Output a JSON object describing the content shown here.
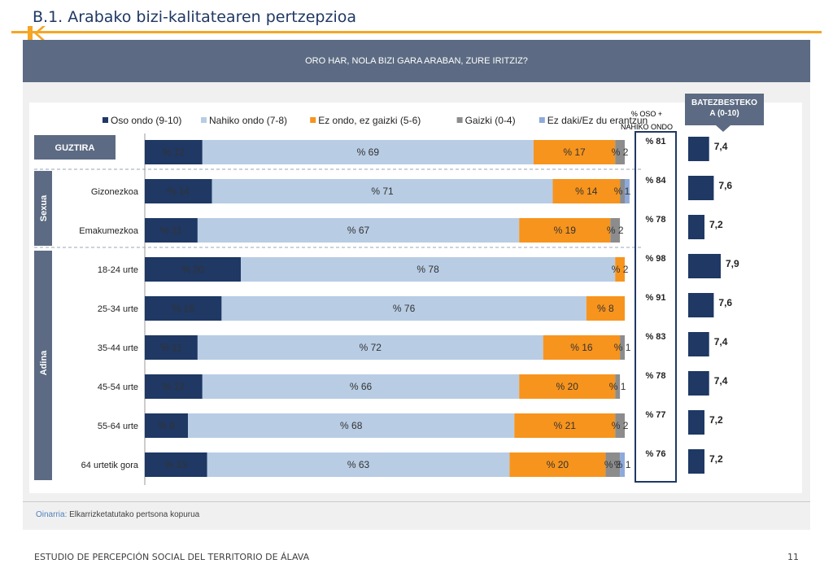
{
  "page": {
    "title": "B.1. Arabako bizi-kalitatearen pertzepzioa",
    "question": "ORO HAR, NOLA BIZI GARA ARABAN, ZURE IRITZIZ?",
    "basis_label": "Oinarria:",
    "basis_text": "Elkarrizketatutako pertsona kopurua",
    "footer": "ESTUDIO DE PERCEPCIÓN SOCIAL DEL TERRITORIO DE ÁLAVA",
    "page_number": "11",
    "oso_nahiko_header": [
      "% OSO +",
      "NAHIKO ONDO"
    ],
    "mean_header": [
      "BATEZBESTEKO",
      "A (0-10)"
    ]
  },
  "chart_data": {
    "type": "bar",
    "orientation": "horizontal-stacked-100",
    "legend_placement": "top",
    "group_labels": {
      "total": "GUZTIRA",
      "sex": "Sexua",
      "age": "Adina"
    },
    "categories": [
      "GUZTIRA",
      "Gizonezkoa",
      "Emakumezkoa",
      "18-24 urte",
      "25-34 urte",
      "35-44 urte",
      "45-54 urte",
      "55-64 urte",
      "64 urtetik gora"
    ],
    "series": [
      {
        "name": "Oso ondo (9-10)",
        "color": "#1f3864",
        "values": [
          12,
          14,
          11,
          20,
          16,
          11,
          12,
          9,
          13
        ],
        "labels": [
          "% 12",
          "% 14",
          "% 11",
          "% 20",
          "% 16",
          "% 11",
          "% 12",
          "% 9",
          "% 13"
        ]
      },
      {
        "name": "Nahiko ondo (7-8)",
        "color": "#b8cce4",
        "values": [
          69,
          71,
          67,
          78,
          76,
          72,
          66,
          68,
          63
        ],
        "labels": [
          "% 69",
          "% 71",
          "% 67",
          "% 78",
          "% 76",
          "% 72",
          "% 66",
          "% 68",
          "% 63"
        ]
      },
      {
        "name": "Ez ondo, ez gaizki (5-6)",
        "color": "#f7941d",
        "values": [
          17,
          14,
          19,
          2,
          8,
          16,
          20,
          21,
          20
        ],
        "labels": [
          "% 17",
          "% 14",
          "% 19",
          "% 2",
          "% 8",
          "% 16",
          "% 20",
          "% 21",
          "% 20"
        ]
      },
      {
        "name": "Gaizki (0-4)",
        "color": "#8c8c8c",
        "values": [
          2,
          1,
          2,
          0,
          0,
          1,
          1,
          2,
          3
        ],
        "labels": [
          "% 2",
          "% 1",
          "% 2",
          "",
          "",
          "% 1",
          "% 1",
          "% 2",
          "% 3"
        ]
      },
      {
        "name": "Ez daki/Ez du erantzun",
        "color": "#8eaadb",
        "values": [
          0,
          1,
          0,
          0,
          0,
          0,
          0,
          0,
          1
        ],
        "labels": [
          "",
          "1",
          "",
          "",
          "",
          "",
          "",
          "",
          "% 1"
        ]
      }
    ],
    "oso_nahiko_ondo": [
      "% 81",
      "% 84",
      "% 78",
      "% 98",
      "% 91",
      "% 83",
      "% 78",
      "% 77",
      "% 76"
    ],
    "mean_values": [
      "7,4",
      "7,6",
      "7,2",
      "7,9",
      "7,6",
      "7,4",
      "7,4",
      "7,2",
      "7,2"
    ],
    "mean_numeric": [
      7.4,
      7.6,
      7.2,
      7.9,
      7.6,
      7.4,
      7.4,
      7.2,
      7.2
    ],
    "mean_scale": [
      0,
      10
    ],
    "xlim": [
      0,
      100
    ]
  }
}
